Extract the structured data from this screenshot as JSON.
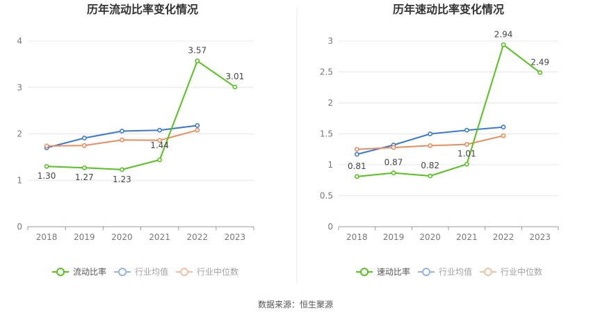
{
  "source_label": "数据来源：恒生聚源",
  "chart_data": [
    {
      "type": "line",
      "title": "历年流动比率变化情况",
      "categories": [
        "2018",
        "2019",
        "2020",
        "2021",
        "2022",
        "2023"
      ],
      "yticks": [
        "0",
        "1",
        "2",
        "3",
        "4"
      ],
      "ylim": [
        0,
        4
      ],
      "grid": true,
      "legend_position": "bottom",
      "series": [
        {
          "name": "流动比率",
          "color": "#52c41a",
          "values": [
            1.3,
            1.27,
            1.23,
            1.44,
            3.57,
            3.01
          ],
          "labels": [
            "1.30",
            "1.27",
            "1.23",
            "1.44",
            "3.57",
            "3.01"
          ]
        },
        {
          "name": "行业均值",
          "color": "#3a78d8",
          "values": [
            1.7,
            1.91,
            2.06,
            2.08,
            2.18,
            null
          ]
        },
        {
          "name": "行业中位数",
          "color": "#ee8b5b",
          "values": [
            1.74,
            1.75,
            1.87,
            1.86,
            2.08,
            null
          ]
        }
      ]
    },
    {
      "type": "line",
      "title": "历年速动比率变化情况",
      "categories": [
        "2018",
        "2019",
        "2020",
        "2021",
        "2022",
        "2023"
      ],
      "yticks": [
        "0",
        "0.5",
        "1",
        "1.5",
        "2",
        "2.5",
        "3"
      ],
      "ylim": [
        0,
        3
      ],
      "grid": true,
      "legend_position": "bottom",
      "series": [
        {
          "name": "速动比率",
          "color": "#52c41a",
          "values": [
            0.81,
            0.87,
            0.82,
            1.01,
            2.94,
            2.49
          ],
          "labels": [
            "0.81",
            "0.87",
            "0.82",
            "1.01",
            "2.94",
            "2.49"
          ]
        },
        {
          "name": "行业均值",
          "color": "#3a78d8",
          "values": [
            1.17,
            1.32,
            1.5,
            1.56,
            1.61,
            null
          ]
        },
        {
          "name": "行业中位数",
          "color": "#ee8b5b",
          "values": [
            1.25,
            1.28,
            1.31,
            1.33,
            1.47,
            null
          ]
        }
      ]
    }
  ]
}
